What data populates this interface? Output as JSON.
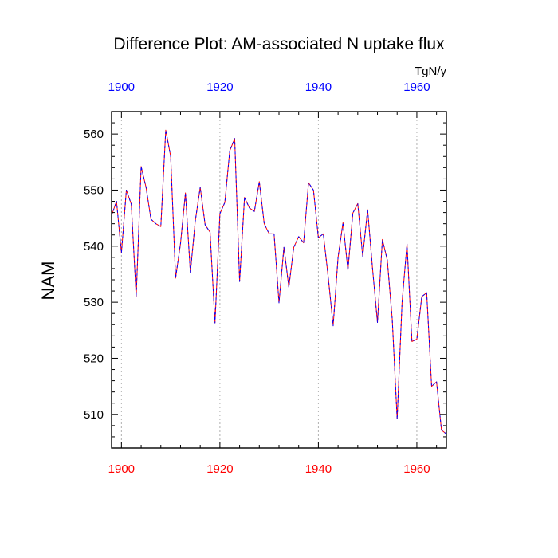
{
  "chart_data": {
    "type": "line",
    "title": "Difference Plot: AM-associated N uptake flux",
    "units": "TgN/y",
    "ylabel": "NAM",
    "xlabel": "",
    "xlim": [
      1898,
      1966
    ],
    "ylim": [
      504,
      564
    ],
    "x_ticks": [
      1900,
      1920,
      1940,
      1960
    ],
    "y_ticks": [
      510,
      520,
      530,
      540,
      550,
      560
    ],
    "grid": "vertical dashed at major x ticks",
    "colors": {
      "bottom_axis_labels": "#ff0000",
      "top_axis_labels": "#0000ff",
      "series_a": "#ff0000",
      "series_b": "#0000ff"
    },
    "series": [
      {
        "color": "#ff0000",
        "x": [
          1898,
          1899,
          1900,
          1901,
          1902,
          1903,
          1904,
          1905,
          1906,
          1907,
          1908,
          1909,
          1910,
          1911,
          1912,
          1913,
          1914,
          1915,
          1916,
          1917,
          1918,
          1919,
          1920,
          1921,
          1922,
          1923,
          1924,
          1925,
          1926,
          1927,
          1928,
          1929,
          1930,
          1931,
          1932,
          1933,
          1934,
          1935,
          1936,
          1937,
          1938,
          1939,
          1940,
          1941,
          1942,
          1943,
          1944,
          1945,
          1946,
          1947,
          1948,
          1949,
          1950,
          1951,
          1952,
          1953,
          1954,
          1955,
          1956,
          1957,
          1958,
          1959,
          1960,
          1961,
          1962,
          1963,
          1964,
          1965,
          1966
        ],
        "values": [
          545.5,
          548.0,
          538.8,
          550.0,
          547.5,
          531.0,
          554.2,
          550.5,
          544.8,
          544.0,
          543.5,
          560.7,
          556.0,
          534.3,
          540.5,
          549.5,
          535.3,
          544.5,
          550.5,
          543.8,
          542.5,
          526.3,
          545.8,
          547.8,
          557.0,
          559.2,
          533.7,
          548.7,
          546.8,
          546.2,
          551.5,
          544.0,
          542.2,
          542.2,
          529.9,
          539.8,
          532.7,
          539.8,
          541.7,
          540.6,
          551.3,
          550.0,
          541.5,
          542.2,
          534.5,
          525.8,
          538.0,
          544.2,
          535.7,
          545.9,
          547.6,
          538.2,
          546.5,
          536.0,
          526.4,
          541.2,
          537.5,
          527.0,
          509.2,
          530.0,
          540.4,
          523.0,
          523.4,
          531.0,
          531.7,
          515.0,
          515.8,
          507.2,
          506.5
        ]
      },
      {
        "color": "#0000ff",
        "x": [
          1898,
          1899,
          1900,
          1901,
          1902,
          1903,
          1904,
          1905,
          1906,
          1907,
          1908,
          1909,
          1910,
          1911,
          1912,
          1913,
          1914,
          1915,
          1916,
          1917,
          1918,
          1919,
          1920,
          1921,
          1922,
          1923,
          1924,
          1925,
          1926,
          1927,
          1928,
          1929,
          1930,
          1931,
          1932,
          1933,
          1934,
          1935,
          1936,
          1937,
          1938,
          1939,
          1940,
          1941,
          1942,
          1943,
          1944,
          1945,
          1946,
          1947,
          1948,
          1949,
          1950,
          1951,
          1952,
          1953,
          1954,
          1955,
          1956,
          1957,
          1958,
          1959,
          1960,
          1961,
          1962,
          1963,
          1964,
          1965,
          1966
        ],
        "values": [
          545.5,
          548.0,
          538.8,
          550.0,
          547.5,
          531.0,
          554.2,
          550.5,
          544.8,
          544.0,
          543.5,
          560.7,
          556.0,
          534.3,
          540.5,
          549.5,
          535.3,
          544.5,
          550.5,
          543.8,
          542.5,
          526.3,
          545.8,
          547.8,
          557.0,
          559.2,
          533.7,
          548.7,
          546.8,
          546.2,
          551.5,
          544.0,
          542.2,
          542.2,
          529.9,
          539.8,
          532.7,
          539.8,
          541.7,
          540.6,
          551.3,
          550.0,
          541.5,
          542.2,
          534.5,
          525.8,
          538.0,
          544.2,
          535.7,
          545.9,
          547.6,
          538.2,
          546.5,
          536.0,
          526.4,
          541.2,
          537.5,
          527.0,
          509.2,
          530.0,
          540.4,
          523.0,
          523.4,
          531.0,
          531.7,
          515.0,
          515.8,
          507.2,
          506.5
        ]
      }
    ]
  }
}
